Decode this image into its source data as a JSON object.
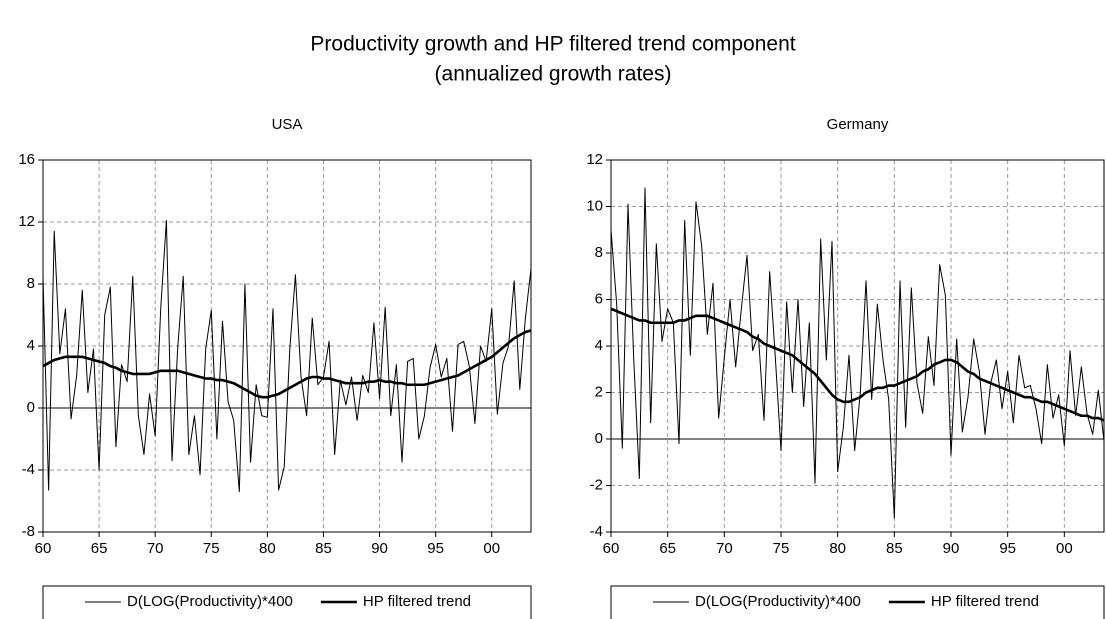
{
  "title": "Productivity growth and HP filtered trend component",
  "subtitle": "(annualized growth rates)",
  "chart_data": [
    {
      "type": "line",
      "title": "USA",
      "x": [
        60,
        60.5,
        61,
        61.5,
        62,
        62.5,
        63,
        63.5,
        64,
        64.5,
        65,
        65.5,
        66,
        66.5,
        67,
        67.5,
        68,
        68.5,
        69,
        69.5,
        70,
        70.5,
        71,
        71.5,
        72,
        72.5,
        73,
        73.5,
        74,
        74.5,
        75,
        75.5,
        76,
        76.5,
        77,
        77.5,
        78,
        78.5,
        79,
        79.5,
        80,
        80.5,
        81,
        81.5,
        82,
        82.5,
        83,
        83.5,
        84,
        84.5,
        85,
        85.5,
        86,
        86.5,
        87,
        87.5,
        88,
        88.5,
        89,
        89.5,
        90,
        90.5,
        91,
        91.5,
        92,
        92.5,
        93,
        93.5,
        94,
        94.5,
        95,
        95.5,
        96,
        96.5,
        97,
        97.5,
        98,
        98.5,
        99,
        99.5,
        100,
        100.5,
        101,
        101.5,
        102,
        102.5,
        103,
        103.5
      ],
      "xlim": [
        60,
        103.5
      ],
      "xticks": [
        60,
        65,
        70,
        75,
        80,
        85,
        90,
        95,
        {
          "value": 100,
          "label": "00"
        }
      ],
      "ylim": [
        -8,
        16
      ],
      "yticks": [
        -8,
        -4,
        0,
        4,
        8,
        12,
        16
      ],
      "grid": true,
      "legend": "bottom",
      "series": [
        {
          "name": "D(LOG(Productivity)*400",
          "color": "#000000",
          "line_width": 1,
          "values": [
            8.5,
            -5.3,
            11.4,
            3.5,
            6.4,
            -0.7,
            2.1,
            7.6,
            1.0,
            3.8,
            -4.0,
            6.0,
            7.8,
            -2.5,
            2.8,
            1.7,
            8.5,
            -0.5,
            -3.0,
            0.9,
            -1.8,
            6.5,
            12.1,
            -3.4,
            3.8,
            8.5,
            -3.0,
            -0.5,
            -4.3,
            3.8,
            6.3,
            -2.0,
            5.6,
            0.4,
            -0.8,
            -5.4,
            8.0,
            -3.5,
            1.5,
            -0.5,
            -0.6,
            6.4,
            -5.3,
            -3.8,
            3.8,
            8.6,
            2.0,
            -0.5,
            5.8,
            1.5,
            2.0,
            4.3,
            -3.0,
            1.8,
            0.2,
            2.0,
            -0.8,
            2.1,
            1.0,
            5.5,
            0.6,
            6.5,
            -0.5,
            2.8,
            -3.5,
            3.0,
            3.2,
            -2.0,
            -0.5,
            2.6,
            4.1,
            2.0,
            3.2,
            -1.5,
            4.1,
            4.3,
            2.7,
            -1.0,
            4.0,
            3.0,
            6.4,
            -0.4,
            2.9,
            4.0,
            8.2,
            1.2,
            5.8,
            9.0
          ]
        },
        {
          "name": "HP filtered trend",
          "color": "#000000",
          "line_width": 2.6,
          "values": [
            2.7,
            2.9,
            3.1,
            3.2,
            3.3,
            3.3,
            3.3,
            3.3,
            3.2,
            3.1,
            3.0,
            2.9,
            2.7,
            2.6,
            2.4,
            2.3,
            2.2,
            2.2,
            2.2,
            2.2,
            2.3,
            2.4,
            2.4,
            2.4,
            2.4,
            2.3,
            2.2,
            2.1,
            2.0,
            1.9,
            1.9,
            1.8,
            1.8,
            1.7,
            1.6,
            1.4,
            1.2,
            1.0,
            0.8,
            0.7,
            0.7,
            0.8,
            0.9,
            1.1,
            1.3,
            1.5,
            1.7,
            1.9,
            2.0,
            2.0,
            1.9,
            1.9,
            1.8,
            1.7,
            1.6,
            1.6,
            1.6,
            1.6,
            1.7,
            1.7,
            1.8,
            1.7,
            1.7,
            1.6,
            1.6,
            1.5,
            1.5,
            1.5,
            1.5,
            1.6,
            1.7,
            1.8,
            1.9,
            2.0,
            2.1,
            2.3,
            2.5,
            2.7,
            2.9,
            3.1,
            3.3,
            3.6,
            3.9,
            4.2,
            4.5,
            4.7,
            4.9,
            5.0
          ]
        }
      ]
    },
    {
      "type": "line",
      "title": "Germany",
      "x": [
        60,
        60.5,
        61,
        61.5,
        62,
        62.5,
        63,
        63.5,
        64,
        64.5,
        65,
        65.5,
        66,
        66.5,
        67,
        67.5,
        68,
        68.5,
        69,
        69.5,
        70,
        70.5,
        71,
        71.5,
        72,
        72.5,
        73,
        73.5,
        74,
        74.5,
        75,
        75.5,
        76,
        76.5,
        77,
        77.5,
        78,
        78.5,
        79,
        79.5,
        80,
        80.5,
        81,
        81.5,
        82,
        82.5,
        83,
        83.5,
        84,
        84.5,
        85,
        85.5,
        86,
        86.5,
        87,
        87.5,
        88,
        88.5,
        89,
        89.5,
        90,
        90.5,
        91,
        91.5,
        92,
        92.5,
        93,
        93.5,
        94,
        94.5,
        95,
        95.5,
        96,
        96.5,
        97,
        97.5,
        98,
        98.5,
        99,
        99.5,
        100,
        100.5,
        101,
        101.5,
        102,
        102.5,
        103,
        103.5
      ],
      "xlim": [
        60,
        103.5
      ],
      "xticks": [
        60,
        65,
        70,
        75,
        80,
        85,
        90,
        95,
        {
          "value": 100,
          "label": "00"
        }
      ],
      "ylim": [
        -4,
        12
      ],
      "yticks": [
        -4,
        -2,
        0,
        2,
        4,
        6,
        8,
        10,
        12
      ],
      "grid": true,
      "legend": "bottom",
      "series": [
        {
          "name": "D(LOG(Productivity)*400",
          "color": "#000000",
          "line_width": 1,
          "values": [
            9.0,
            5.8,
            -0.4,
            10.1,
            3.5,
            -1.7,
            10.8,
            0.7,
            8.4,
            4.2,
            5.6,
            5.0,
            -0.2,
            9.4,
            3.6,
            10.2,
            8.3,
            4.5,
            6.7,
            0.9,
            3.5,
            6.0,
            3.1,
            5.6,
            7.9,
            3.8,
            4.5,
            0.8,
            7.2,
            3.5,
            -0.5,
            5.9,
            2.0,
            6.0,
            1.4,
            5.0,
            -1.9,
            8.6,
            3.4,
            8.5,
            -1.4,
            0.5,
            3.6,
            -0.5,
            2.0,
            6.8,
            1.7,
            5.8,
            3.4,
            1.7,
            -3.4,
            6.8,
            0.5,
            6.5,
            2.4,
            1.1,
            4.4,
            2.3,
            7.5,
            6.2,
            -0.7,
            4.3,
            0.3,
            1.8,
            4.3,
            2.9,
            0.2,
            2.4,
            3.4,
            1.3,
            2.9,
            0.7,
            3.6,
            2.2,
            2.3,
            1.3,
            -0.2,
            3.2,
            0.9,
            1.9,
            -0.3,
            3.8,
            1.0,
            3.1,
            1.1,
            0.2,
            2.1,
            -0.1
          ]
        },
        {
          "name": "HP filtered trend",
          "color": "#000000",
          "line_width": 2.6,
          "values": [
            5.6,
            5.5,
            5.4,
            5.3,
            5.2,
            5.1,
            5.1,
            5.0,
            5.0,
            5.0,
            5.0,
            5.0,
            5.1,
            5.1,
            5.2,
            5.3,
            5.3,
            5.3,
            5.2,
            5.1,
            5.0,
            4.9,
            4.8,
            4.7,
            4.6,
            4.4,
            4.3,
            4.1,
            4.0,
            3.9,
            3.8,
            3.7,
            3.6,
            3.4,
            3.2,
            3.0,
            2.8,
            2.5,
            2.2,
            1.9,
            1.7,
            1.6,
            1.6,
            1.7,
            1.8,
            2.0,
            2.1,
            2.2,
            2.2,
            2.3,
            2.3,
            2.4,
            2.5,
            2.6,
            2.7,
            2.9,
            3.0,
            3.2,
            3.3,
            3.4,
            3.4,
            3.3,
            3.1,
            2.9,
            2.8,
            2.6,
            2.5,
            2.4,
            2.3,
            2.2,
            2.1,
            2.0,
            1.9,
            1.8,
            1.8,
            1.7,
            1.6,
            1.6,
            1.5,
            1.4,
            1.3,
            1.2,
            1.1,
            1.0,
            1.0,
            0.9,
            0.9,
            0.8
          ]
        }
      ]
    }
  ]
}
